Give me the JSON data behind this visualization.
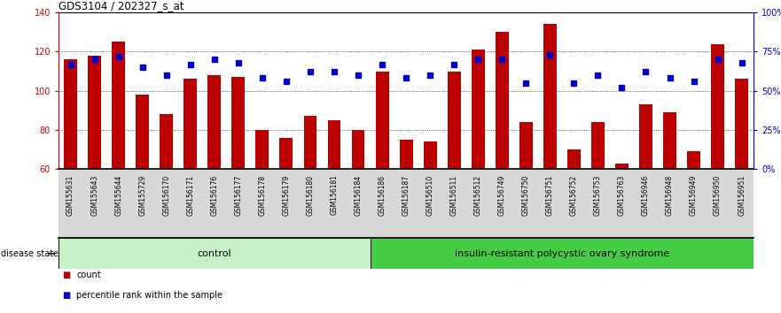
{
  "title": "GDS3104 / 202327_s_at",
  "samples": [
    "GSM155631",
    "GSM155643",
    "GSM155644",
    "GSM155729",
    "GSM156170",
    "GSM156171",
    "GSM156176",
    "GSM156177",
    "GSM156178",
    "GSM156179",
    "GSM156180",
    "GSM156181",
    "GSM156184",
    "GSM156186",
    "GSM156187",
    "GSM156510",
    "GSM156511",
    "GSM156512",
    "GSM156749",
    "GSM156750",
    "GSM156751",
    "GSM156752",
    "GSM156753",
    "GSM156763",
    "GSM156946",
    "GSM156948",
    "GSM156949",
    "GSM156950",
    "GSM156951"
  ],
  "bar_values": [
    116,
    118,
    125,
    98,
    88,
    106,
    108,
    107,
    80,
    76,
    87,
    85,
    80,
    110,
    75,
    74,
    110,
    121,
    130,
    84,
    134,
    70,
    84,
    63,
    93,
    89,
    69,
    124,
    106
  ],
  "dot_pcts": [
    67,
    70,
    72,
    65,
    60,
    67,
    70,
    68,
    58,
    56,
    62,
    62,
    60,
    67,
    58,
    60,
    67,
    70,
    70,
    55,
    73,
    55,
    60,
    52,
    62,
    58,
    56,
    70,
    68
  ],
  "ylim_left": [
    60,
    140
  ],
  "yticks_left": [
    60,
    80,
    100,
    120,
    140
  ],
  "yticks_right": [
    0,
    25,
    50,
    75,
    100
  ],
  "bar_color": "#bb0000",
  "dot_color": "#0000cc",
  "control_count": 13,
  "disease_label": "control",
  "disease2_label": "insulin-resistant polycystic ovary syndrome",
  "legend_count_label": "count",
  "legend_pct_label": "percentile rank within the sample",
  "right_axis_color": "#0000cc",
  "left_axis_color": "#cc0000",
  "control_bg": "#c8f0c8",
  "disease_bg": "#44cc44",
  "xtick_bg": "#d8d8d8"
}
